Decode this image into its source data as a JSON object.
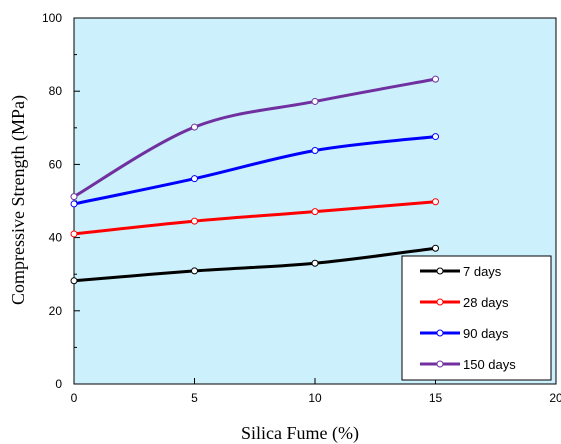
{
  "chart_data": {
    "type": "line",
    "title": "",
    "xlabel": "Silica Fume (%)",
    "ylabel": "Compressive Strength (MPa)",
    "xlim": [
      0,
      20
    ],
    "ylim": [
      0,
      100
    ],
    "xticks": [
      0,
      5,
      10,
      15,
      20
    ],
    "yticks": [
      0,
      20,
      40,
      60,
      80,
      100
    ],
    "x": [
      0,
      5,
      10,
      15
    ],
    "grid": false,
    "legend_position": "bottom-right",
    "plot_background": "#ccf0fc",
    "series": [
      {
        "name": "7 days",
        "color": "#000000",
        "values": [
          28.2,
          30.9,
          33.0,
          37.1
        ]
      },
      {
        "name": "28 days",
        "color": "#ff0000",
        "values": [
          41.0,
          44.5,
          47.1,
          49.8
        ]
      },
      {
        "name": "90 days",
        "color": "#0000ff",
        "values": [
          49.2,
          56.1,
          63.8,
          67.6
        ]
      },
      {
        "name": "150 days",
        "color": "#7030a0",
        "values": [
          51.2,
          70.2,
          77.2,
          83.3
        ]
      }
    ]
  }
}
